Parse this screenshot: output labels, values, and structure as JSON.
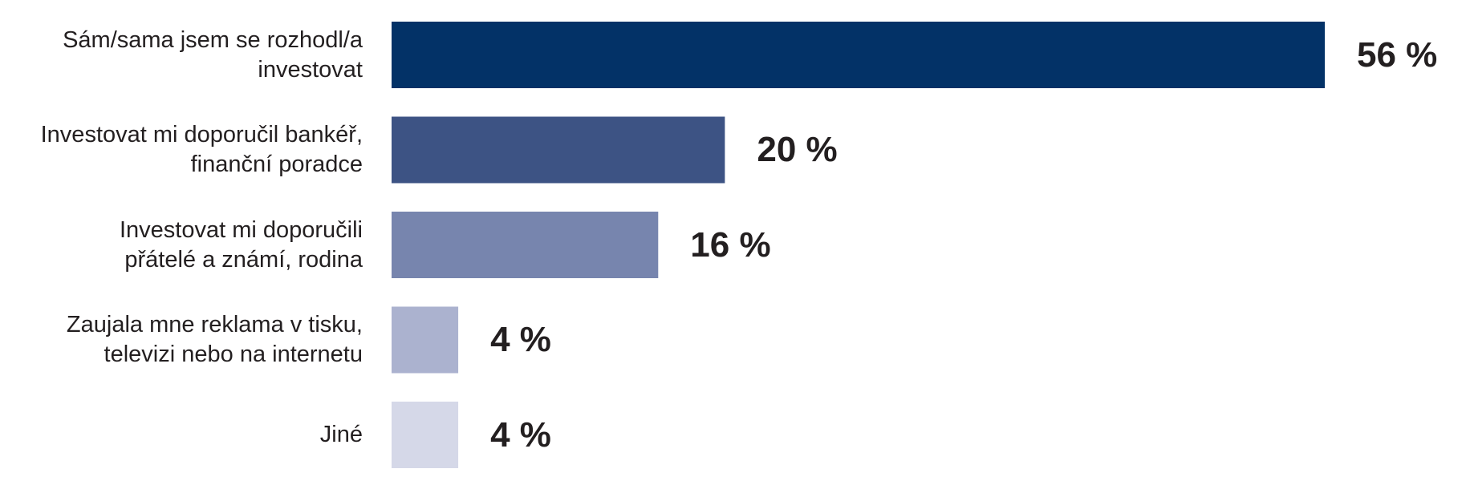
{
  "chart_data": {
    "type": "bar",
    "orientation": "horizontal",
    "categories": [
      [
        "Sám/sama jsem se rozhodl/a",
        "investovat"
      ],
      [
        "Investovat mi doporučil bankéř,",
        "finanční poradce"
      ],
      [
        "Investovat mi doporučili",
        "přátelé a známí, rodina"
      ],
      [
        "Zaujala mne reklama v tisku,",
        "televizi nebo na internetu"
      ],
      [
        "Jiné"
      ]
    ],
    "values": [
      56,
      20,
      16,
      4,
      4
    ],
    "value_labels": [
      "56 %",
      "20 %",
      "16 %",
      "4 %",
      "4 %"
    ],
    "colors": [
      "#033267",
      "#3d5384",
      "#7785ae",
      "#abb2cf",
      "#d5d8e8"
    ],
    "xlim": [
      0,
      56
    ],
    "unit": "%",
    "title": "",
    "xlabel": "",
    "ylabel": "",
    "grid": false,
    "legend": "none"
  }
}
